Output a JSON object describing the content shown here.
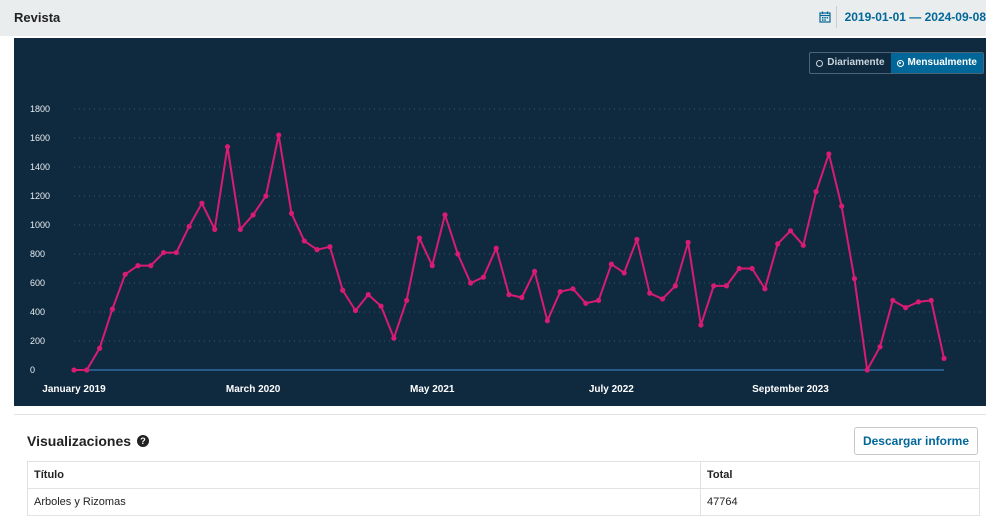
{
  "header": {
    "title": "Revista",
    "date_range": "2019-01-01 — 2024-09-08",
    "calendar_icon": "calendar-icon"
  },
  "toggle": {
    "options": [
      "Diariamente",
      "Mensualmente"
    ],
    "selected": "Mensualmente"
  },
  "colors": {
    "panel_bg": "#0f2a3f",
    "line": "#d81b73",
    "axis": "#2e6da4",
    "accent": "#006798"
  },
  "chart_data": {
    "type": "line",
    "title": "",
    "xlabel": "",
    "ylabel": "",
    "ylim": [
      0,
      1800
    ],
    "yticks": [
      0,
      200,
      400,
      600,
      800,
      1000,
      1200,
      1400,
      1600,
      1800
    ],
    "x_tick_labels": [
      {
        "index": 0,
        "label": "January 2019"
      },
      {
        "index": 14,
        "label": "March 2020"
      },
      {
        "index": 28,
        "label": "May 2021"
      },
      {
        "index": 42,
        "label": "July 2022"
      },
      {
        "index": 56,
        "label": "September 2023"
      }
    ],
    "grid": true,
    "series": [
      {
        "values": [
          0,
          0,
          150,
          420,
          660,
          720,
          720,
          810,
          810,
          990,
          1150,
          970,
          1540,
          970,
          1070,
          1200,
          1620,
          1080,
          890,
          830,
          850,
          550,
          410,
          520,
          440,
          220,
          480,
          910,
          720,
          1070,
          800,
          600,
          640,
          840,
          520,
          500,
          680,
          340,
          540,
          560,
          460,
          480,
          730,
          670,
          900,
          530,
          490,
          580,
          880,
          310,
          580,
          580,
          700,
          700,
          560,
          870,
          960,
          860,
          1230,
          1490,
          1130,
          630,
          0,
          160,
          480,
          430,
          470,
          480,
          80
        ]
      }
    ]
  },
  "visualizations": {
    "title": "Visualizaciones",
    "help_icon": "question-circle-icon",
    "download_label": "Descargar informe",
    "columns": [
      "Título",
      "Total"
    ],
    "rows": [
      [
        "Arboles y Rizomas",
        "47764"
      ]
    ]
  }
}
